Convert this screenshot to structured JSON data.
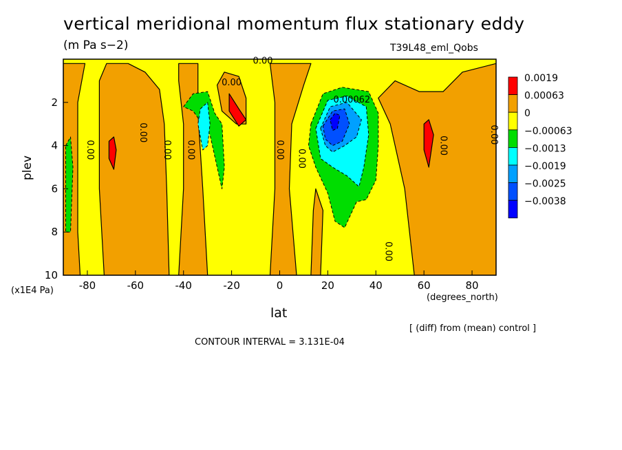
{
  "chart_data": {
    "type": "heatmap",
    "title": "vertical meridional momentum flux stationary eddy",
    "units": "(m Pa s−2)",
    "run_label": "T39L48_eml_Qobs",
    "xlabel": "lat",
    "x_unit": "(degrees_north)",
    "ylabel": "plev",
    "y_unit": "(x1E4 Pa)",
    "xlim": [
      -90,
      90
    ],
    "ylim": [
      10,
      0
    ],
    "x_ticks": [
      -80,
      -60,
      -40,
      -20,
      0,
      20,
      40,
      60,
      80
    ],
    "y_ticks": [
      2,
      4,
      6,
      8,
      10
    ],
    "note": "[ (diff) from (mean) control ]",
    "contour_interval": "CONTOUR INTERVAL = 3.131E-04",
    "legend": [
      {
        "label": "0.0019",
        "color": "#ff0000"
      },
      {
        "label": "0.00063",
        "color": "#f2a000"
      },
      {
        "label": "0",
        "color": "#ffff00"
      },
      {
        "label": "−0.00063",
        "color": "#00dd00"
      },
      {
        "label": "−0.0013",
        "color": "#00ffff"
      },
      {
        "label": "−0.0019",
        "color": "#00a0ff"
      },
      {
        "label": "−0.0025",
        "color": "#0050ff"
      },
      {
        "label": "−0.0038",
        "color": "#0000ff"
      }
    ],
    "background_level": "0",
    "regions": [
      {
        "level": "0.00063",
        "points": [
          [
            -90,
            10
          ],
          [
            -90,
            0.2
          ],
          [
            -81,
            0.2
          ],
          [
            -84,
            2
          ],
          [
            -84,
            8
          ],
          [
            -83,
            10
          ]
        ]
      },
      {
        "level": "0.00063",
        "points": [
          [
            -73,
            10
          ],
          [
            -75,
            6
          ],
          [
            -75,
            1
          ],
          [
            -72,
            0.2
          ],
          [
            -63,
            0.2
          ],
          [
            -56,
            0.6
          ],
          [
            -50,
            1.4
          ],
          [
            -48,
            3
          ],
          [
            -47,
            6
          ],
          [
            -46,
            10
          ]
        ]
      },
      {
        "level": "0.00063",
        "points": [
          [
            -42,
            10
          ],
          [
            -40,
            6
          ],
          [
            -40,
            3
          ],
          [
            -42,
            1
          ],
          [
            -42,
            0.2
          ],
          [
            -34,
            0.2
          ],
          [
            -34,
            2.5
          ],
          [
            -32,
            6
          ],
          [
            -30,
            10
          ]
        ]
      },
      {
        "level": "0.00063",
        "points": [
          [
            -26,
            1.2
          ],
          [
            -23,
            0.6
          ],
          [
            -17,
            0.8
          ],
          [
            -14,
            1.8
          ],
          [
            -14,
            3
          ],
          [
            -18,
            3
          ],
          [
            -24,
            2.4
          ]
        ]
      },
      {
        "level": "0.00063",
        "points": [
          [
            -4,
            10
          ],
          [
            -2,
            6
          ],
          [
            -2,
            2
          ],
          [
            -4,
            0.2
          ],
          [
            13,
            0.2
          ],
          [
            10,
            1.2
          ],
          [
            5,
            3
          ],
          [
            4,
            6
          ],
          [
            7,
            10
          ]
        ]
      },
      {
        "level": "0.00063",
        "points": [
          [
            13,
            10
          ],
          [
            14,
            7
          ],
          [
            15,
            6
          ],
          [
            18,
            7
          ],
          [
            17,
            10
          ]
        ]
      },
      {
        "level": "0.00063",
        "points": [
          [
            41,
            1.8
          ],
          [
            48,
            1
          ],
          [
            58,
            1.5
          ],
          [
            68,
            1.5
          ],
          [
            76,
            0.6
          ],
          [
            90,
            0.2
          ],
          [
            90,
            10
          ],
          [
            56,
            10
          ],
          [
            52,
            6
          ],
          [
            46,
            3
          ]
        ]
      },
      {
        "level": "0.0019",
        "points": [
          [
            -71,
            3.8
          ],
          [
            -69,
            3.6
          ],
          [
            -68,
            4.2
          ],
          [
            -69,
            5.1
          ],
          [
            -71,
            4.6
          ]
        ]
      },
      {
        "level": "0.0019",
        "points": [
          [
            -21,
            1.6
          ],
          [
            -17,
            2.3
          ],
          [
            -14,
            2.8
          ],
          [
            -17,
            3.1
          ],
          [
            -21,
            2.4
          ]
        ]
      },
      {
        "level": "0.0019",
        "points": [
          [
            60,
            3.0
          ],
          [
            62,
            2.8
          ],
          [
            64,
            3.5
          ],
          [
            62,
            5.0
          ],
          [
            60,
            4.2
          ]
        ]
      },
      {
        "level": "-0.00063",
        "points": [
          [
            -89,
            4
          ],
          [
            -87,
            3.6
          ],
          [
            -86,
            5
          ],
          [
            -87,
            8
          ],
          [
            -89,
            8
          ]
        ]
      },
      {
        "level": "-0.00063",
        "points": [
          [
            -40,
            2.2
          ],
          [
            -36,
            1.6
          ],
          [
            -30,
            1.5
          ],
          [
            -27,
            2.5
          ],
          [
            -24,
            3
          ],
          [
            -23,
            5
          ],
          [
            -24,
            6
          ],
          [
            -26,
            5
          ],
          [
            -29,
            3.5
          ],
          [
            -36,
            2.4
          ]
        ]
      },
      {
        "level": "-0.00063",
        "points": [
          [
            13,
            3
          ],
          [
            18,
            1.6
          ],
          [
            26,
            1.3
          ],
          [
            37,
            1.5
          ],
          [
            41,
            2.5
          ],
          [
            41,
            4
          ],
          [
            40,
            5.6
          ],
          [
            36,
            6.5
          ],
          [
            32,
            6.6
          ],
          [
            27,
            7.8
          ],
          [
            23,
            7.5
          ],
          [
            20,
            6.2
          ],
          [
            15,
            5
          ],
          [
            12,
            4
          ]
        ]
      },
      {
        "level": "-0.0013",
        "points": [
          [
            -33,
            2.3
          ],
          [
            -30,
            2
          ],
          [
            -29,
            3
          ],
          [
            -30,
            4
          ],
          [
            -32,
            4.2
          ],
          [
            -34,
            3
          ]
        ]
      },
      {
        "level": "-0.0013",
        "points": [
          [
            15,
            3.2
          ],
          [
            20,
            1.9
          ],
          [
            28,
            1.7
          ],
          [
            36,
            2.2
          ],
          [
            37,
            3.5
          ],
          [
            35,
            5
          ],
          [
            33,
            5.9
          ],
          [
            28,
            5.4
          ],
          [
            22,
            5
          ],
          [
            17,
            4.6
          ]
        ]
      },
      {
        "level": "-0.0019",
        "points": [
          [
            17,
            3.2
          ],
          [
            21,
            2.2
          ],
          [
            28,
            2
          ],
          [
            34,
            2.8
          ],
          [
            32,
            3.6
          ],
          [
            27,
            4
          ],
          [
            22,
            4.3
          ],
          [
            19,
            4
          ]
        ]
      },
      {
        "level": "-0.0025",
        "points": [
          [
            18,
            3.1
          ],
          [
            22,
            2.4
          ],
          [
            27,
            2.3
          ],
          [
            29,
            3
          ],
          [
            26,
            3.8
          ],
          [
            22,
            4
          ],
          [
            19,
            3.7
          ]
        ]
      },
      {
        "level": "-0.0038",
        "points": [
          [
            21,
            2.8
          ],
          [
            23,
            2.5
          ],
          [
            25,
            2.6
          ],
          [
            24,
            3.2
          ],
          [
            22,
            3.3
          ]
        ]
      }
    ],
    "contour_labels": [
      {
        "text": "0.00",
        "x": -79,
        "y": 4.2,
        "rotate": 90
      },
      {
        "text": "0.00",
        "x": -57,
        "y": 3.4,
        "rotate": 90
      },
      {
        "text": "0.00",
        "x": -47,
        "y": 4.2,
        "rotate": 90
      },
      {
        "text": "0.00",
        "x": -37,
        "y": 4.2,
        "rotate": 90
      },
      {
        "text": "0.00",
        "x": 0,
        "y": 4.2,
        "rotate": 90
      },
      {
        "text": "0.00",
        "x": 9,
        "y": 4.6,
        "rotate": 90
      },
      {
        "text": "0.00",
        "x": 45,
        "y": 8.9,
        "rotate": 90
      },
      {
        "text": "0.00",
        "x": 68,
        "y": 4.0,
        "rotate": 90
      },
      {
        "text": "0.00",
        "x": 89,
        "y": 3.5,
        "rotate": 90
      },
      {
        "text": "0.00",
        "x": -20,
        "y": 1.1,
        "rotate": 0
      },
      {
        "text": "0.00",
        "x": -7,
        "y": 0.1,
        "rotate": 0
      },
      {
        "text": "0.00062",
        "x": 30,
        "y": 1.9,
        "rotate": 0
      }
    ]
  }
}
